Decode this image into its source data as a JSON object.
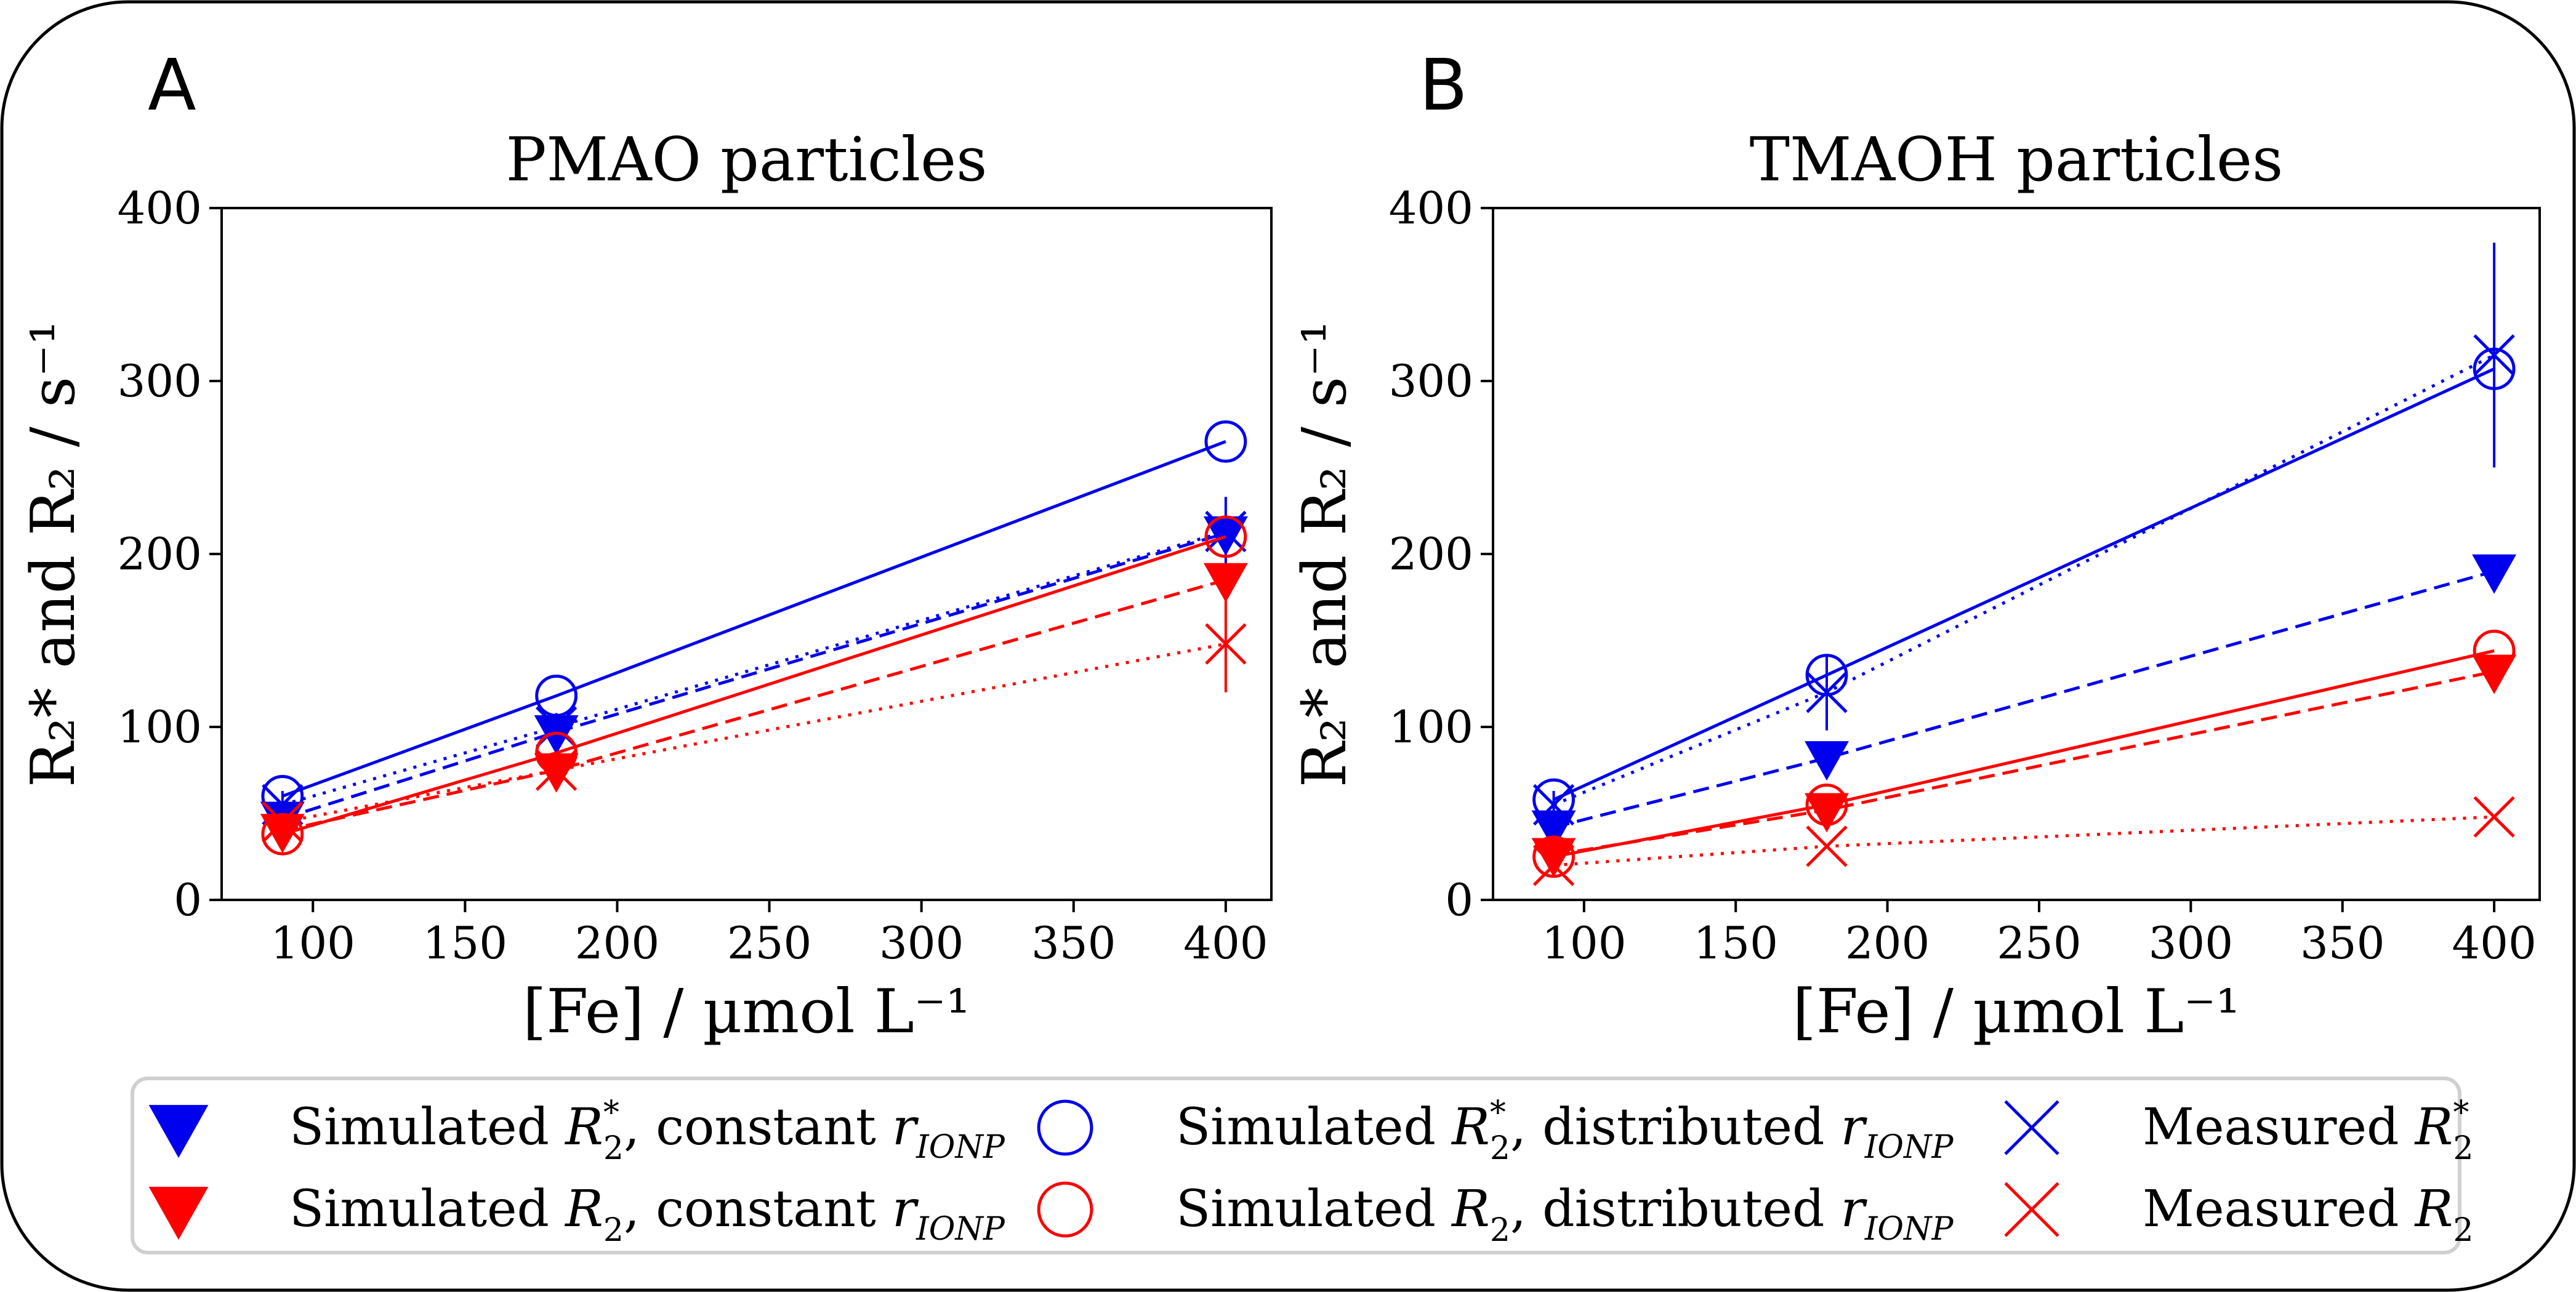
{
  "figure": {
    "panel_labels": [
      "A",
      "B"
    ]
  },
  "colors": {
    "blue": "#0000ee",
    "red": "#ff0000",
    "frame": "#000000",
    "legend_border": "#d0d0d0"
  },
  "chart_data": [
    {
      "type": "line",
      "panel": "A",
      "title": "PMAO particles",
      "xlabel": "[Fe] / µmol L⁻¹",
      "ylabel": "R₂* and R₂ / s⁻¹",
      "xlim": [
        70,
        415
      ],
      "ylim": [
        0,
        400
      ],
      "xticks": [
        100,
        150,
        200,
        250,
        300,
        350,
        400
      ],
      "yticks": [
        0,
        100,
        200,
        300,
        400
      ],
      "x": [
        90,
        180,
        400
      ],
      "series": [
        {
          "name": "Simulated R2*, constant r_IONP",
          "color": "blue",
          "marker": "triangle",
          "line": "dashed",
          "values": [
            47,
            97,
            212
          ]
        },
        {
          "name": "Simulated R2*, distributed r_IONP",
          "color": "blue",
          "marker": "circle",
          "line": "solid",
          "values": [
            60,
            118,
            265
          ]
        },
        {
          "name": "Measured R2*",
          "color": "blue",
          "marker": "x",
          "line": "dotted",
          "values": [
            55,
            100,
            213
          ],
          "err": [
            8,
            8,
            20
          ]
        },
        {
          "name": "Simulated R2, constant r_IONP",
          "color": "red",
          "marker": "triangle",
          "line": "dashed",
          "values": [
            40,
            75,
            185
          ]
        },
        {
          "name": "Simulated R2, distributed r_IONP",
          "color": "red",
          "marker": "circle",
          "line": "solid",
          "values": [
            38,
            85,
            210
          ]
        },
        {
          "name": "Measured R2",
          "color": "red",
          "marker": "x",
          "line": "dotted",
          "values": [
            45,
            75,
            148
          ],
          "err": [
            5,
            5,
            28
          ]
        }
      ]
    },
    {
      "type": "line",
      "panel": "B",
      "title": "TMAOH particles",
      "xlabel": "[Fe] / µmol L⁻¹",
      "ylabel": "R₂* and R₂ / s⁻¹",
      "xlim": [
        70,
        415
      ],
      "ylim": [
        0,
        400
      ],
      "xticks": [
        100,
        150,
        200,
        250,
        300,
        350,
        400
      ],
      "yticks": [
        0,
        100,
        200,
        300,
        400
      ],
      "x": [
        90,
        180,
        400
      ],
      "series": [
        {
          "name": "Simulated R2*, constant r_IONP",
          "color": "blue",
          "marker": "triangle",
          "line": "dashed",
          "values": [
            42,
            82,
            190
          ]
        },
        {
          "name": "Simulated R2*, distributed r_IONP",
          "color": "blue",
          "marker": "circle",
          "line": "solid",
          "values": [
            58,
            130,
            307
          ]
        },
        {
          "name": "Measured R2*",
          "color": "blue",
          "marker": "x",
          "line": "dotted",
          "values": [
            55,
            120,
            315
          ],
          "err": [
            8,
            22,
            65
          ]
        },
        {
          "name": "Simulated R2, constant r_IONP",
          "color": "red",
          "marker": "triangle",
          "line": "dashed",
          "values": [
            26,
            52,
            132
          ]
        },
        {
          "name": "Simulated R2, distributed r_IONP",
          "color": "red",
          "marker": "circle",
          "line": "solid",
          "values": [
            25,
            55,
            144
          ]
        },
        {
          "name": "Measured R2",
          "color": "red",
          "marker": "x",
          "line": "dotted",
          "values": [
            20,
            31,
            48
          ]
        }
      ]
    }
  ],
  "legend": {
    "placement": "bottom",
    "items": [
      {
        "color": "blue",
        "marker": "triangle",
        "parts": [
          "Simulated ",
          "R",
          "*",
          "2",
          ", constant ",
          "r",
          "IONP"
        ]
      },
      {
        "color": "blue",
        "marker": "circle",
        "parts": [
          "Simulated ",
          "R",
          "*",
          "2",
          ", distributed ",
          "r",
          "IONP"
        ]
      },
      {
        "color": "blue",
        "marker": "x",
        "parts": [
          "Measured ",
          "R",
          "*",
          "2",
          "",
          "",
          ""
        ]
      },
      {
        "color": "red",
        "marker": "triangle",
        "parts": [
          "Simulated ",
          "R",
          "",
          "2",
          ", constant ",
          "r",
          "IONP"
        ]
      },
      {
        "color": "red",
        "marker": "circle",
        "parts": [
          "Simulated ",
          "R",
          "",
          "2",
          ", distributed ",
          "r",
          "IONP"
        ]
      },
      {
        "color": "red",
        "marker": "x",
        "parts": [
          "Measured ",
          "R",
          "",
          "2",
          "",
          "",
          ""
        ]
      }
    ]
  }
}
